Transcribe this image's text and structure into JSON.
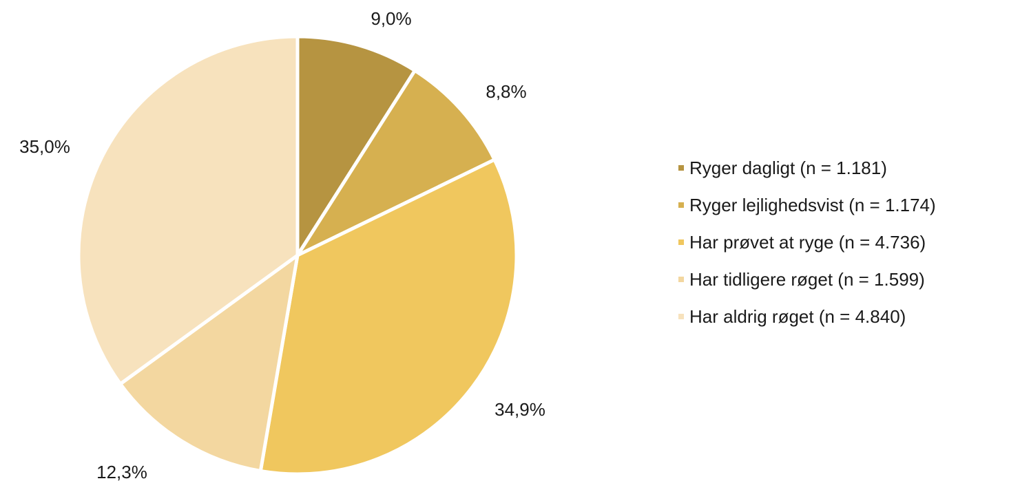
{
  "chart_data": {
    "type": "pie",
    "slices": [
      {
        "label": "Ryger dagligt (n = 1.181)",
        "value": 9.0,
        "display": "9,0%",
        "color": "#b69441"
      },
      {
        "label": "Ryger lejlighedsvist (n = 1.174)",
        "value": 8.8,
        "display": "8,8%",
        "color": "#d6b050"
      },
      {
        "label": "Har prøvet at ryge (n = 4.736)",
        "value": 34.9,
        "display": "34,9%",
        "color": "#f0c75e"
      },
      {
        "label": "Har tidligere røget (n = 1.599)",
        "value": 12.3,
        "display": "12,3%",
        "color": "#f3d7a0"
      },
      {
        "label": "Har aldrig røget (n = 4.840)",
        "value": 35.0,
        "display": "35,0%",
        "color": "#f7e2bd"
      }
    ],
    "start_angle": "12 o'clock",
    "direction": "clockwise",
    "legend_position": "right"
  }
}
